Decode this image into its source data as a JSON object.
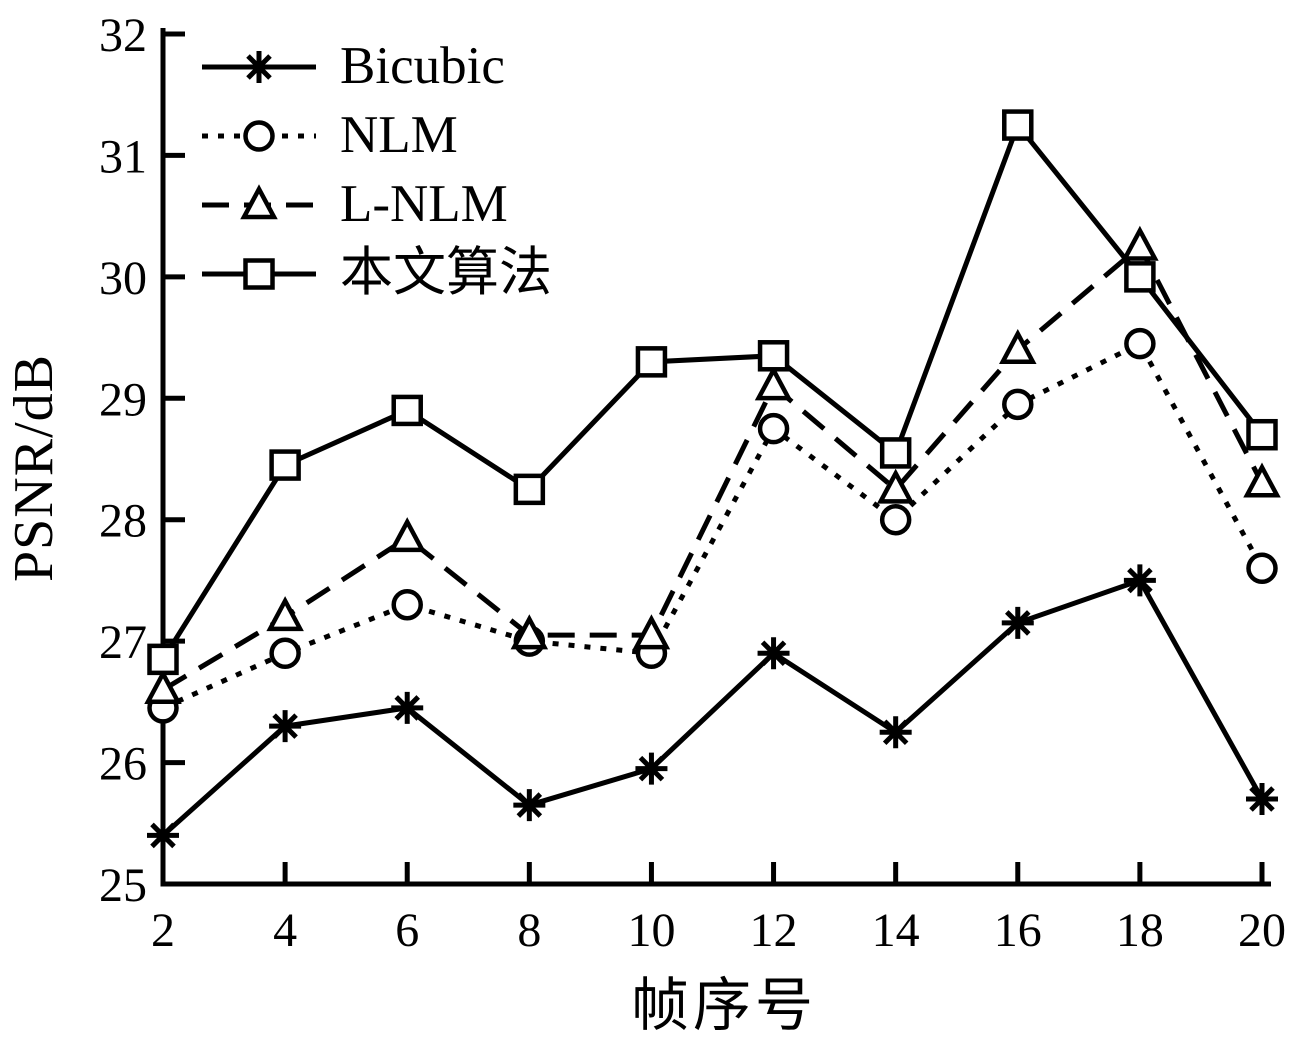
{
  "figure": {
    "background": "#ffffff",
    "foreground": "#000000"
  },
  "chart_data": {
    "type": "line",
    "title": "",
    "xlabel": "帧序号",
    "ylabel": "PSNR/dB",
    "x": [
      2,
      4,
      6,
      8,
      10,
      12,
      14,
      16,
      18,
      20
    ],
    "xlim": [
      2,
      20
    ],
    "ylim": [
      25,
      32
    ],
    "xticks": [
      2,
      4,
      6,
      8,
      10,
      12,
      14,
      16,
      18,
      20
    ],
    "yticks": [
      25,
      26,
      27,
      28,
      29,
      30,
      31,
      32
    ],
    "grid": false,
    "legend": {
      "position": "top-left-inside",
      "border": false
    },
    "series": [
      {
        "name": "Bicubic",
        "marker": "asterisk",
        "linestyle": "solid",
        "color": "#000000",
        "values": [
          25.4,
          26.3,
          26.45,
          25.65,
          25.95,
          26.9,
          26.25,
          27.15,
          27.5,
          25.7
        ]
      },
      {
        "name": "NLM",
        "marker": "circle",
        "linestyle": "dotted",
        "color": "#000000",
        "values": [
          26.45,
          26.9,
          27.3,
          27.0,
          26.9,
          28.75,
          28.0,
          28.95,
          29.45,
          27.6
        ]
      },
      {
        "name": "L-NLM",
        "marker": "triangle",
        "linestyle": "dashed",
        "color": "#000000",
        "values": [
          26.6,
          27.2,
          27.85,
          27.05,
          27.05,
          29.1,
          28.25,
          29.4,
          30.25,
          28.3
        ]
      },
      {
        "name": "本文算法",
        "marker": "square",
        "linestyle": "solid",
        "color": "#000000",
        "values": [
          26.85,
          28.45,
          28.9,
          28.25,
          29.3,
          29.35,
          28.55,
          31.25,
          30.0,
          28.7
        ]
      }
    ]
  }
}
